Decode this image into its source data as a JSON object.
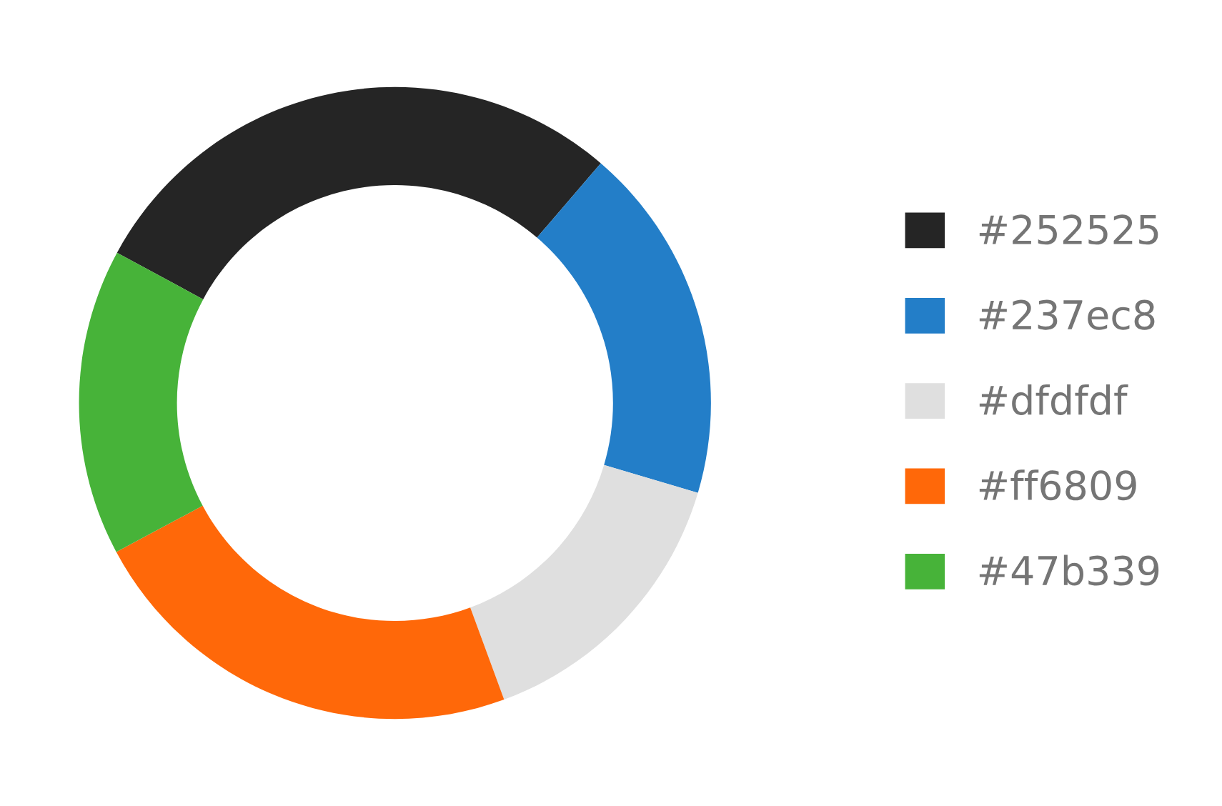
{
  "chart_data": {
    "type": "donut",
    "categories": [
      "#252525",
      "#237ec8",
      "#dfdfdf",
      "#ff6809",
      "#47b339"
    ],
    "values": [
      28.4,
      18.3,
      14.8,
      22.8,
      15.7
    ],
    "colors": [
      "#252525",
      "#237ec8",
      "#dfdfdf",
      "#ff6809",
      "#47b339"
    ],
    "legend": "right"
  }
}
